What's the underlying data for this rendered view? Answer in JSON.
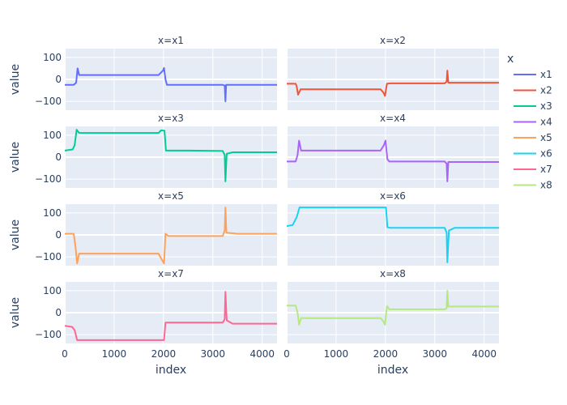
{
  "chart_data": {
    "type": "line",
    "xlabel": "index",
    "ylabel": "value",
    "legend_title": "x",
    "legend_position": "right",
    "xlim": [
      0,
      4300
    ],
    "ylim": [
      -140,
      140
    ],
    "x_ticks": [
      0,
      1000,
      2000,
      3000,
      4000
    ],
    "x_tick_labels": [
      "0",
      "1000",
      "2000",
      "3000",
      "4000"
    ],
    "y_ticks": [
      -100,
      0,
      100
    ],
    "y_tick_labels": [
      "−100",
      "0",
      "100"
    ],
    "grid": true,
    "series": [
      {
        "name": "x1",
        "panel_title": "x=x1",
        "color": "#636EFA",
        "points": [
          [
            0,
            -25
          ],
          [
            180,
            -25
          ],
          [
            230,
            -15
          ],
          [
            260,
            50
          ],
          [
            290,
            20
          ],
          [
            600,
            20
          ],
          [
            1900,
            20
          ],
          [
            1990,
            40
          ],
          [
            2010,
            52
          ],
          [
            2040,
            0
          ],
          [
            2070,
            -25
          ],
          [
            2500,
            -25
          ],
          [
            3200,
            -25
          ],
          [
            3240,
            -28
          ],
          [
            3255,
            -100
          ],
          [
            3270,
            -25
          ],
          [
            3500,
            -25
          ],
          [
            4300,
            -25
          ]
        ]
      },
      {
        "name": "x2",
        "panel_title": "x=x2",
        "color": "#EF553B",
        "points": [
          [
            0,
            -20
          ],
          [
            180,
            -20
          ],
          [
            200,
            -30
          ],
          [
            230,
            -70
          ],
          [
            280,
            -45
          ],
          [
            600,
            -45
          ],
          [
            1900,
            -45
          ],
          [
            1960,
            -60
          ],
          [
            1990,
            -75
          ],
          [
            2030,
            -20
          ],
          [
            2100,
            -18
          ],
          [
            2500,
            -18
          ],
          [
            3200,
            -18
          ],
          [
            3240,
            -10
          ],
          [
            3255,
            40
          ],
          [
            3275,
            -15
          ],
          [
            3500,
            -15
          ],
          [
            4300,
            -15
          ]
        ]
      },
      {
        "name": "x3",
        "panel_title": "x=x3",
        "color": "#00CC96",
        "points": [
          [
            0,
            30
          ],
          [
            160,
            35
          ],
          [
            200,
            55
          ],
          [
            240,
            125
          ],
          [
            290,
            110
          ],
          [
            600,
            110
          ],
          [
            1900,
            110
          ],
          [
            1950,
            122
          ],
          [
            2020,
            120
          ],
          [
            2050,
            30
          ],
          [
            2100,
            30
          ],
          [
            2500,
            30
          ],
          [
            3200,
            28
          ],
          [
            3240,
            10
          ],
          [
            3255,
            -110
          ],
          [
            3280,
            15
          ],
          [
            3400,
            22
          ],
          [
            4300,
            22
          ]
        ]
      },
      {
        "name": "x4",
        "panel_title": "x=x4",
        "color": "#AB63FA",
        "points": [
          [
            0,
            -20
          ],
          [
            180,
            -20
          ],
          [
            220,
            10
          ],
          [
            250,
            75
          ],
          [
            290,
            30
          ],
          [
            600,
            30
          ],
          [
            1900,
            30
          ],
          [
            1970,
            55
          ],
          [
            2000,
            75
          ],
          [
            2040,
            -10
          ],
          [
            2080,
            -20
          ],
          [
            2500,
            -20
          ],
          [
            3200,
            -20
          ],
          [
            3240,
            -30
          ],
          [
            3255,
            -110
          ],
          [
            3275,
            -22
          ],
          [
            3500,
            -22
          ],
          [
            4300,
            -22
          ]
        ]
      },
      {
        "name": "x5",
        "panel_title": "x=x5",
        "color": "#FFA15A",
        "points": [
          [
            0,
            5
          ],
          [
            180,
            5
          ],
          [
            220,
            -60
          ],
          [
            250,
            -130
          ],
          [
            290,
            -85
          ],
          [
            600,
            -85
          ],
          [
            1900,
            -85
          ],
          [
            1960,
            -110
          ],
          [
            2010,
            -130
          ],
          [
            2040,
            5
          ],
          [
            2100,
            -5
          ],
          [
            2500,
            -5
          ],
          [
            3200,
            -5
          ],
          [
            3240,
            20
          ],
          [
            3255,
            125
          ],
          [
            3275,
            10
          ],
          [
            3500,
            5
          ],
          [
            4300,
            5
          ]
        ]
      },
      {
        "name": "x6",
        "panel_title": "x=x6",
        "color": "#19D3F3",
        "points": [
          [
            0,
            40
          ],
          [
            120,
            45
          ],
          [
            200,
            80
          ],
          [
            260,
            125
          ],
          [
            600,
            125
          ],
          [
            1900,
            125
          ],
          [
            2010,
            125
          ],
          [
            2040,
            35
          ],
          [
            2100,
            32
          ],
          [
            2500,
            32
          ],
          [
            3200,
            32
          ],
          [
            3240,
            10
          ],
          [
            3255,
            -125
          ],
          [
            3285,
            20
          ],
          [
            3400,
            32
          ],
          [
            4300,
            32
          ]
        ]
      },
      {
        "name": "x7",
        "panel_title": "x=x7",
        "color": "#FF6692",
        "points": [
          [
            0,
            -60
          ],
          [
            150,
            -65
          ],
          [
            200,
            -80
          ],
          [
            250,
            -125
          ],
          [
            600,
            -125
          ],
          [
            1900,
            -125
          ],
          [
            2010,
            -125
          ],
          [
            2040,
            -45
          ],
          [
            2100,
            -45
          ],
          [
            2500,
            -45
          ],
          [
            3200,
            -45
          ],
          [
            3240,
            -30
          ],
          [
            3255,
            95
          ],
          [
            3280,
            -35
          ],
          [
            3400,
            -50
          ],
          [
            4300,
            -50
          ]
        ]
      },
      {
        "name": "x8",
        "panel_title": "x=x8",
        "color": "#B6E880",
        "points": [
          [
            0,
            32
          ],
          [
            180,
            32
          ],
          [
            220,
            0
          ],
          [
            250,
            -55
          ],
          [
            290,
            -25
          ],
          [
            600,
            -25
          ],
          [
            1900,
            -25
          ],
          [
            1960,
            -40
          ],
          [
            1990,
            -55
          ],
          [
            2030,
            30
          ],
          [
            2080,
            15
          ],
          [
            2500,
            15
          ],
          [
            3200,
            15
          ],
          [
            3240,
            20
          ],
          [
            3255,
            100
          ],
          [
            3275,
            28
          ],
          [
            3500,
            28
          ],
          [
            4300,
            28
          ]
        ]
      }
    ]
  }
}
